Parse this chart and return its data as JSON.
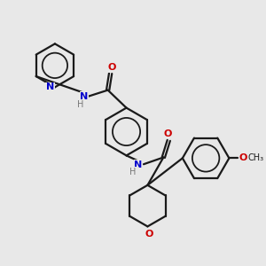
{
  "background_color": "#e8e8e8",
  "line_color": "#1a1a1a",
  "N_color": "#0000cd",
  "O_color": "#cc0000",
  "H_color": "#777777",
  "line_width": 1.6,
  "dbo": 0.055,
  "figsize": [
    3.0,
    3.0
  ],
  "dpi": 100,
  "xlim": [
    0,
    10
  ],
  "ylim": [
    0,
    10
  ]
}
